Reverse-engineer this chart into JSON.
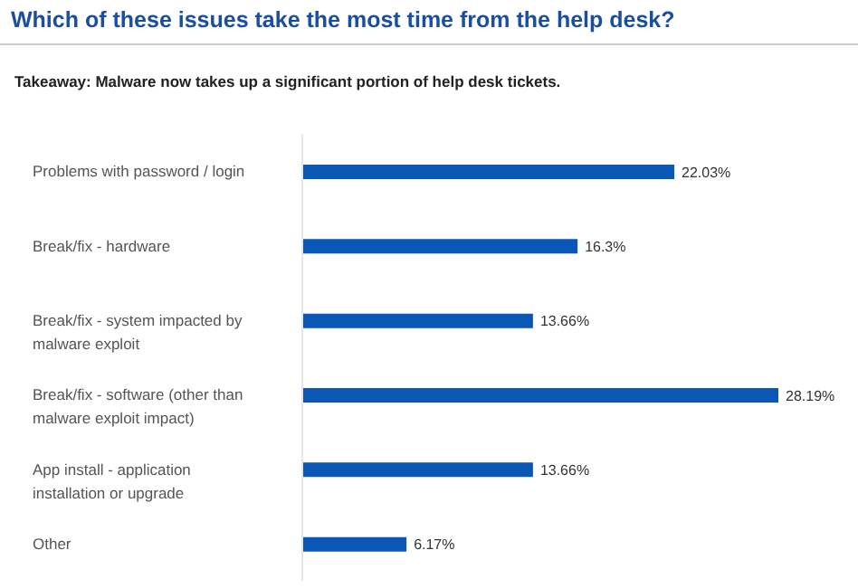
{
  "chart_data": {
    "type": "bar",
    "orientation": "horizontal",
    "title": "Which of these issues take the most time from the help desk?",
    "subtitle": "Takeaway: Malware now takes up a significant portion of help desk tickets.",
    "categories": [
      "Problems with password / login",
      "Break/fix - hardware",
      "Break/fix - system impacted by malware exploit",
      "Break/fix - software (other than malware exploit impact)",
      "App install - application installation or upgrade",
      "Other"
    ],
    "values": [
      22.03,
      16.3,
      13.66,
      28.19,
      13.66,
      6.17
    ],
    "value_labels": [
      "22.03%",
      "16.3%",
      "13.66%",
      "28.19%",
      "13.66%",
      "6.17%"
    ],
    "color": "#0b57b5"
  }
}
